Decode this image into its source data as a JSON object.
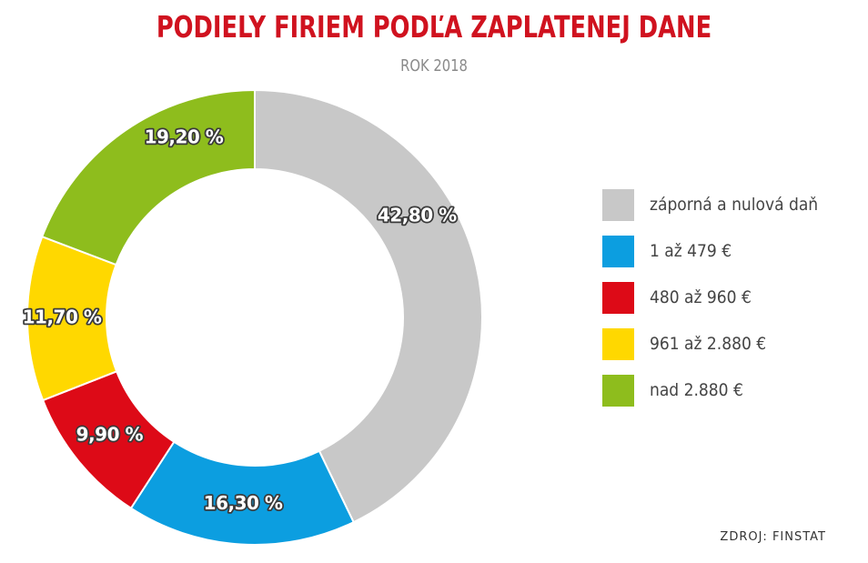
{
  "title": "PODIELY FIRIEM PODĽA ZAPLATENEJ DANE",
  "subtitle": "ROK 2018",
  "source": "ZDROJ: FINSTAT",
  "chart_data": {
    "type": "pie",
    "title": "PODIELY FIRIEM PODĽA ZAPLATENEJ DANE",
    "subtitle": "ROK 2018",
    "legend_position": "right",
    "donut": true,
    "slices": [
      {
        "label": "záporná a nulová daň",
        "value": 42.8,
        "value_label": "42,80 %",
        "color": "#c8c8c8"
      },
      {
        "label": "1 až 479 €",
        "value": 16.3,
        "value_label": "16,30 %",
        "color": "#0c9ee0"
      },
      {
        "label": "480 až 960 €",
        "value": 9.9,
        "value_label": "9,90 %",
        "color": "#dd0a17"
      },
      {
        "label": "961 až 2.880 €",
        "value": 11.7,
        "value_label": "11,70 %",
        "color": "#ffd800"
      },
      {
        "label": "nad 2.880 €",
        "value": 19.2,
        "value_label": "19,20 %",
        "color": "#8ebd1d"
      }
    ]
  }
}
